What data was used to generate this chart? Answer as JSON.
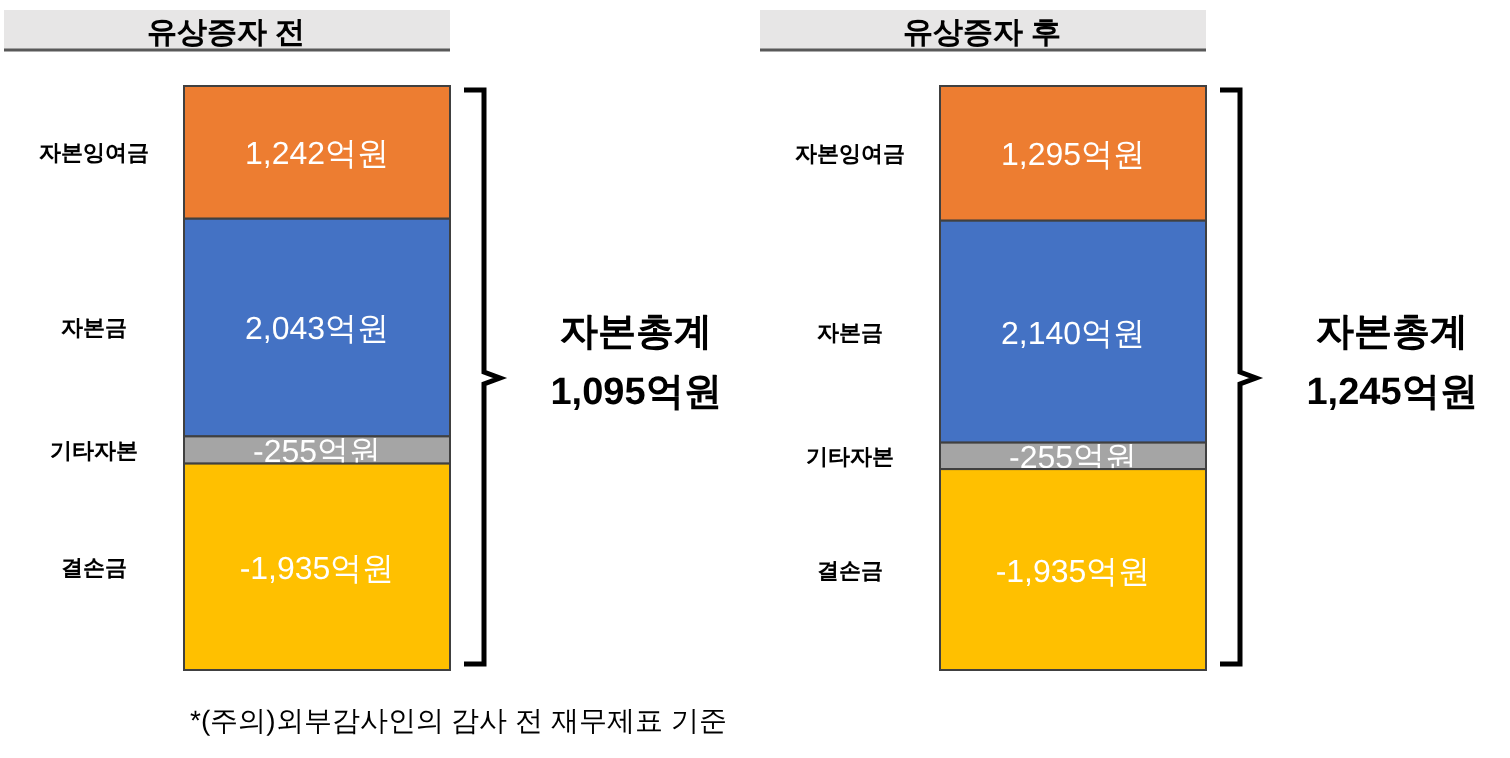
{
  "chart_data": [
    {
      "type": "bar",
      "stacked": true,
      "title": "유상증자 전",
      "categories": [
        null
      ],
      "series": [
        {
          "name": "자본금",
          "color": "#4472c4",
          "values": [
            2043
          ],
          "value_labels": [
            "2,043억원"
          ]
        },
        {
          "name": "자본잉여금",
          "color": "#ed7d31",
          "values": [
            1242
          ],
          "value_labels": [
            "1,242억원"
          ]
        },
        {
          "name": "기타자본",
          "color": "#a5a5a5",
          "values": [
            -255
          ],
          "value_labels": [
            "-255억원"
          ]
        },
        {
          "name": "결손금",
          "color": "#ffc000",
          "values": [
            -1935
          ],
          "value_labels": [
            "-1,935억원"
          ]
        }
      ],
      "annotations": [
        "자본총계\n1,095억원",
        "*(주의)외부감사인의 감사 전 재무제표 기준"
      ]
    },
    {
      "type": "bar",
      "stacked": true,
      "title": "유상증자 후",
      "categories": [
        null
      ],
      "series": [
        {
          "name": "자본금",
          "color": "#4472c4",
          "values": [
            2140
          ],
          "value_labels": [
            "2,140억원"
          ]
        },
        {
          "name": "자본잉여금",
          "color": "#ed7d31",
          "values": [
            1295
          ],
          "value_labels": [
            "1,295억원"
          ]
        },
        {
          "name": "기타자본",
          "color": "#a5a5a5",
          "values": [
            -255
          ],
          "value_labels": [
            "-255억원"
          ]
        },
        {
          "name": "결손금",
          "color": "#ffc000",
          "values": [
            -1935
          ],
          "value_labels": [
            "-1,935억원"
          ]
        }
      ],
      "annotations": [
        "자본총계\n1,245억원"
      ]
    }
  ]
}
